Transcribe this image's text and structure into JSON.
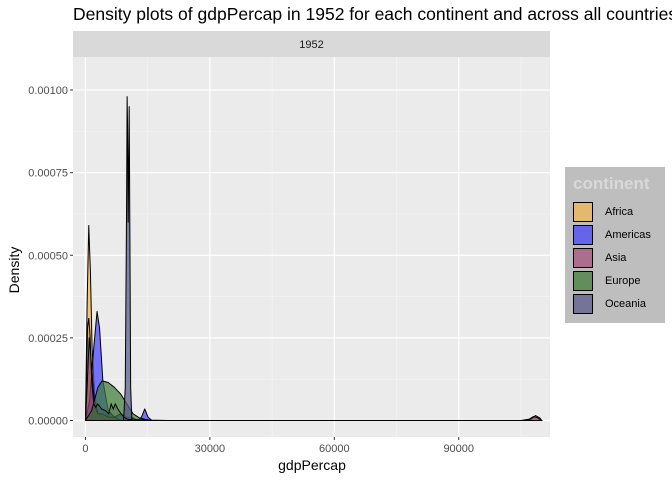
{
  "chart_data": {
    "type": "area",
    "title": "Density plots of gdpPercap in 1952 for each continent and across all countries",
    "facet_label": "1952",
    "xlabel": "gdpPercap",
    "ylabel": "Density",
    "xlim": [
      -3000,
      112000
    ],
    "ylim": [
      -5e-05,
      0.0011
    ],
    "x_ticks": [
      0,
      30000,
      60000,
      90000
    ],
    "x_tick_labels": [
      "0",
      "30000",
      "60000",
      "90000"
    ],
    "y_ticks": [
      0,
      0.00025,
      0.0005,
      0.00075,
      0.001
    ],
    "y_tick_labels": [
      "0.00000",
      "0.00025",
      "0.00050",
      "0.00075",
      "0.00100"
    ],
    "grid": true,
    "legend": {
      "title": "continent",
      "position": "right"
    },
    "series": [
      {
        "name": "Africa",
        "color": "#f7b84b",
        "x": [
          0,
          400,
          800,
          1200,
          1600,
          2200,
          3000,
          4000,
          4800
        ],
        "y": [
          0,
          0.00035,
          0.00059,
          0.00045,
          0.00022,
          8e-05,
          2e-05,
          1e-05,
          0
        ]
      },
      {
        "name": "Americas",
        "color": "#4040ff",
        "x": [
          0,
          1000,
          2000,
          2800,
          3400,
          4200,
          5500,
          7000,
          8500,
          10000,
          11200,
          12500,
          13500,
          14300,
          15100,
          16000
        ],
        "y": [
          0,
          6e-05,
          0.00022,
          0.00033,
          0.00028,
          0.00012,
          3e-05,
          1e-05,
          2e-05,
          1e-05,
          1e-05,
          0,
          1e-05,
          3.5e-05,
          1e-05,
          0
        ]
      },
      {
        "name": "Asia",
        "color": "#a64d79",
        "x": [
          0,
          400,
          900,
          1400,
          1900,
          2400,
          3000,
          4000,
          5500,
          7000,
          8500,
          10000,
          11500,
          13000,
          15000,
          16500,
          60000,
          95000,
          106000,
          107500,
          108500,
          109500,
          110000
        ],
        "y": [
          0,
          0.0001,
          0.00025,
          0.00018,
          9e-05,
          4e-05,
          2e-05,
          2e-05,
          1e-05,
          1e-05,
          0,
          0,
          0,
          0,
          0,
          0,
          0,
          0,
          0,
          5e-06,
          1.5e-05,
          8e-06,
          0
        ]
      },
      {
        "name": "Europe",
        "color": "#3b7a33",
        "x": [
          0,
          1500,
          3000,
          4000,
          5500,
          7000,
          8500,
          10000,
          11500,
          13000,
          14500,
          16000
        ],
        "y": [
          0,
          3e-05,
          0.0001,
          0.00012,
          0.000115,
          0.0001,
          8e-05,
          5e-05,
          2e-05,
          8e-06,
          3e-06,
          0
        ]
      },
      {
        "name": "Oceania",
        "color": "#555588",
        "x": [
          9200,
          9600,
          9900,
          10050,
          10150,
          10300,
          10450,
          10550,
          10700,
          10900,
          11200
        ],
        "y": [
          0,
          0.0001,
          0.00062,
          0.00098,
          0.0009,
          0.0006,
          0.0008,
          0.00095,
          0.0006,
          0.0001,
          0
        ]
      }
    ],
    "all_countries": {
      "x": [
        0,
        250,
        500,
        800,
        1100,
        1500,
        2000,
        2500,
        2900,
        3300,
        3900,
        4800,
        5600,
        6200,
        6700,
        7200,
        7800,
        8600,
        9300,
        10000,
        10400,
        10800,
        11400,
        12000,
        13000,
        14500,
        16000,
        20000,
        60000,
        100000,
        105000,
        107000,
        108000,
        109000,
        109800,
        110000
      ],
      "y": [
        0,
        0.00012,
        0.00028,
        0.00031,
        0.00026,
        0.00012,
        5e-05,
        4e-05,
        5e-05,
        4.5e-05,
        3.5e-05,
        3e-05,
        2e-05,
        5e-05,
        3.5e-05,
        5e-05,
        3.5e-05,
        2e-05,
        1e-05,
        5e-06,
        3e-06,
        3e-06,
        4e-06,
        3e-06,
        2e-06,
        2e-06,
        1e-06,
        0,
        0,
        0,
        0,
        4e-06,
        1.2e-05,
        8e-06,
        2e-06,
        0
      ]
    }
  }
}
